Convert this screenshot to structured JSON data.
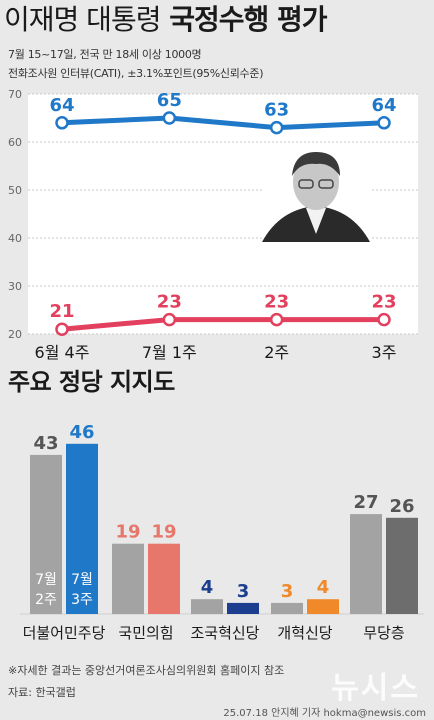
{
  "header": {
    "title_part1": "이재명 대통령",
    "title_part2": "국정수행 평가",
    "meta_line1": "7월 15~17일, 전국 만 18세 이상 1000명",
    "meta_line2": "전화조사원 인터뷰(CATI), ±3.1%포인트(95%신뢰수준)"
  },
  "section2_title": "주요 정당 지지도",
  "footer": {
    "note": "※자세한 결과는 중앙선거여론조사심의위원회 홈페이지 참조",
    "source": "자료: 한국갤럽",
    "watermark": "뉴시스",
    "credit": "25.07.18 안지혜 기자 hokma@newsis.com"
  },
  "colors": {
    "approve": "#1f78c8",
    "disapprove": "#e2405e",
    "bar_prev": "#a3a3a3",
    "bar_blue": "#1f78c8",
    "bar_red": "#e7766b",
    "bar_navy": "#1b3f8e",
    "bar_orange": "#f0892a",
    "bar_gray_dark": "#6d6d6d"
  },
  "chart_data": [
    {
      "type": "line",
      "categories": [
        "6월 4주",
        "7월 1주",
        "2주",
        "3주"
      ],
      "series": [
        {
          "values": [
            64,
            65,
            63,
            64
          ],
          "color": "#1f78c8"
        },
        {
          "values": [
            21,
            23,
            23,
            23
          ],
          "color": "#e2405e"
        }
      ],
      "ylim": [
        20,
        70
      ],
      "yticks": [
        20,
        30,
        40,
        50,
        60,
        70
      ],
      "grid": true,
      "image": "portrait-photo"
    },
    {
      "type": "bar",
      "categories": [
        "더불어민주당",
        "국민의힘",
        "조국혁신당",
        "개혁신당",
        "무당층"
      ],
      "series_labels": [
        "7월 2주",
        "7월 3주"
      ],
      "prev_label_lines": [
        "7월",
        "2주"
      ],
      "curr_label_lines": [
        "7월",
        "3주"
      ],
      "prev": [
        43,
        19,
        4,
        3,
        27
      ],
      "curr": [
        46,
        19,
        3,
        4,
        26
      ],
      "prev_colors": [
        "#a3a3a3",
        "#a3a3a3",
        "#a3a3a3",
        "#a3a3a3",
        "#a3a3a3"
      ],
      "curr_colors": [
        "#1f78c8",
        "#e7766b",
        "#1b3f8e",
        "#f0892a",
        "#6d6d6d"
      ],
      "prev_value_colors": [
        "#555555",
        "#e7766b",
        "#1b3f8e",
        "#f0892a",
        "#555555"
      ],
      "curr_value_colors": [
        "#1f78c8",
        "#e7766b",
        "#1b3f8e",
        "#f0892a",
        "#555555"
      ]
    }
  ]
}
